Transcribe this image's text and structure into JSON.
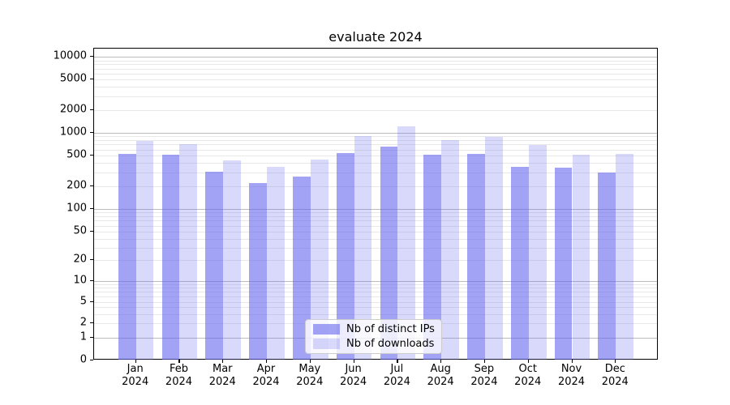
{
  "chart_data": {
    "type": "bar",
    "title": "evaluate 2024",
    "categories": [
      "Jan",
      "Feb",
      "Mar",
      "Apr",
      "May",
      "Jun",
      "Jul",
      "Aug",
      "Sep",
      "Oct",
      "Nov",
      "Dec"
    ],
    "category_year": "2024",
    "series": [
      {
        "name": "Nb of distinct IPs",
        "color": "rgba(102,102,238,0.6)",
        "values": [
          520,
          510,
          310,
          220,
          265,
          540,
          655,
          515,
          520,
          360,
          350,
          300
        ]
      },
      {
        "name": "Nb of downloads",
        "color": "rgba(102,102,238,0.25)",
        "values": [
          780,
          710,
          435,
          355,
          440,
          900,
          1215,
          800,
          870,
          685,
          515,
          520
        ]
      }
    ],
    "yticks": [
      0,
      1,
      2,
      5,
      10,
      20,
      50,
      100,
      200,
      500,
      1000,
      2000,
      5000,
      10000
    ],
    "yaxis_scale": "symlog",
    "ylim": [
      0,
      13000
    ],
    "grid": true,
    "legend_position": "lower center"
  },
  "colors": {
    "accent": "#6666ee",
    "bar_dark": "rgba(102,102,238,0.6)",
    "bar_light": "rgba(102,102,238,0.25)",
    "grid_major": "#bcbcbc",
    "grid_minor": "#e8e8e8",
    "spine": "#000000"
  }
}
